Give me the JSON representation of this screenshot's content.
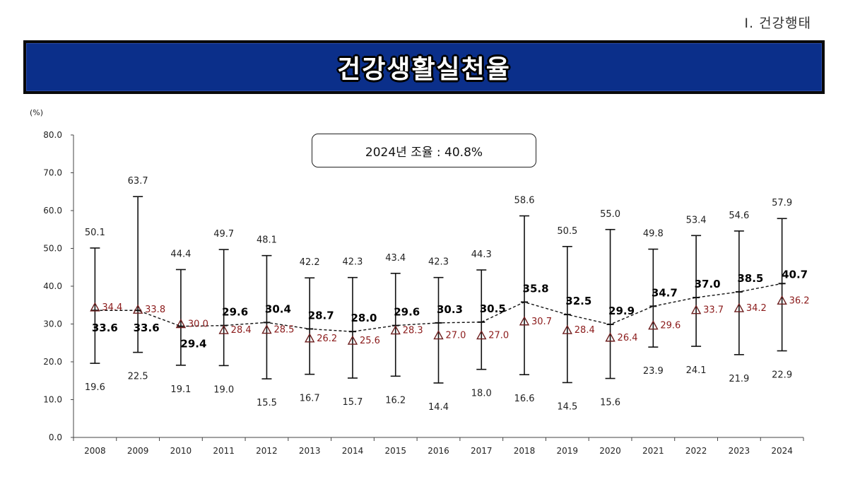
{
  "header": {
    "section": "Ⅰ. 건강행태",
    "title": "건강생활실천율"
  },
  "callout": "2024년 조율 : 40.8%",
  "colors": {
    "banner": "#0b2f8a",
    "adjusted_label": "#000000",
    "crude_label": "#8b1a1a",
    "line": "#111111"
  },
  "chart_data": {
    "type": "line",
    "title": "",
    "ylabel": "(%)",
    "xlabel": "",
    "ylim": [
      0,
      80
    ],
    "yticks": [
      "0.0",
      "10.0",
      "20.0",
      "30.0",
      "40.0",
      "50.0",
      "60.0",
      "70.0",
      "80.0"
    ],
    "categories": [
      "2008",
      "2009",
      "2010",
      "2011",
      "2012",
      "2013",
      "2014",
      "2015",
      "2016",
      "2017",
      "2018",
      "2019",
      "2020",
      "2021",
      "2022",
      "2023",
      "2024"
    ],
    "series": [
      {
        "values": [
          33.6,
          33.6,
          29.4,
          29.6,
          30.4,
          28.7,
          28.0,
          29.6,
          30.3,
          30.5,
          35.8,
          32.5,
          29.9,
          34.7,
          37.0,
          38.5,
          40.7
        ]
      },
      {
        "values": [
          34.4,
          33.8,
          30.0,
          28.4,
          28.5,
          26.2,
          25.6,
          28.3,
          27.0,
          27.0,
          30.7,
          28.4,
          26.4,
          29.6,
          33.7,
          34.2,
          36.2
        ]
      }
    ],
    "range_max": [
      50.1,
      63.7,
      44.4,
      49.7,
      48.1,
      42.2,
      42.3,
      43.4,
      42.3,
      44.3,
      58.6,
      50.5,
      55.0,
      49.8,
      53.4,
      54.6,
      57.9
    ],
    "range_min": [
      19.6,
      22.5,
      19.1,
      19.0,
      15.5,
      16.7,
      15.7,
      16.2,
      14.4,
      18.0,
      16.6,
      14.5,
      15.6,
      23.9,
      24.1,
      21.9,
      22.9
    ],
    "grid": false,
    "legend": "none"
  }
}
